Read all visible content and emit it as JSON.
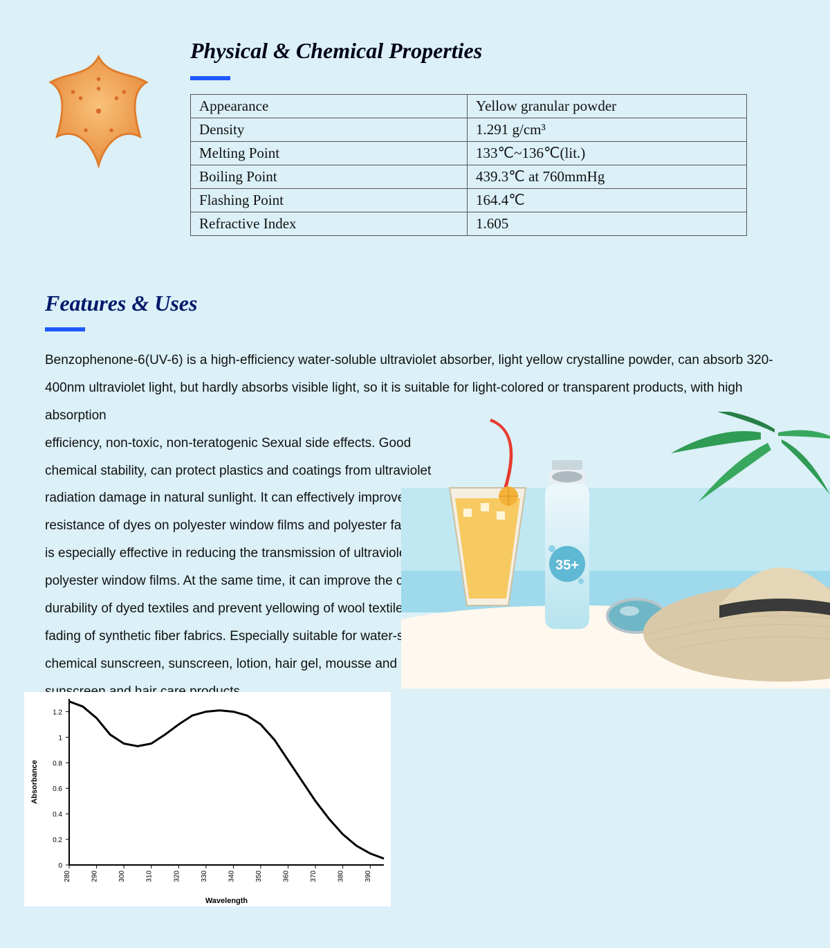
{
  "section1": {
    "title": "Physical & Chemical Properties",
    "underline_color": "#1f58ff",
    "rows": [
      {
        "k": "Appearance",
        "v": "Yellow granular powder"
      },
      {
        "k": "Density",
        "v": "1.291 g/cm³"
      },
      {
        "k": "Melting Point",
        "v": "133℃~136℃(lit.)"
      },
      {
        "k": "Boiling Point",
        "v": "439.3℃ at 760mmHg"
      },
      {
        "k": "Flashing Point",
        "v": "164.4℃"
      },
      {
        "k": "Refractive Index",
        "v": "1.605"
      }
    ]
  },
  "section2": {
    "title": "Features & Uses",
    "underline_color": "#1f58ff",
    "body_wide": "Benzophenone-6(UV-6) is a high-efficiency water-soluble ultraviolet absorber, light yellow crystalline powder, can absorb 320-400nm  ultraviolet light, but hardly absorbs visible light, so it is suitable for light-colored or transparent products, with high absorption",
    "body_narrow": "efficiency, non-toxic, non-teratogenic Sexual side effects. Good chemical stability, can protect plastics and coatings from ultraviolet radiation damage in natural sunlight. It can effectively improve the light resistance of dyes on polyester window films and polyester fabrics, and is especially effective in reducing the transmission of ultraviolet rays on polyester window films. At the same time, it can improve the color durability of dyed textiles and prevent yellowing of wool textiles and fading of synthetic fiber fabrics. Especially suitable for  water-soluble chemical sunscreen, sunscreen, lotion, hair gel, mousse and other sunscreen and hair care products."
  },
  "chart": {
    "type": "line",
    "xlabel": "Wavelength",
    "ylabel": "Absorbance",
    "label_fontsize": 11,
    "tick_fontsize": 10,
    "xlim": [
      280,
      395
    ],
    "ylim": [
      0,
      1.3
    ],
    "xticks": [
      280,
      290,
      300,
      310,
      320,
      330,
      340,
      350,
      360,
      370,
      380,
      390
    ],
    "yticks": [
      0,
      0.2,
      0.4,
      0.6,
      0.8,
      1,
      1.2
    ],
    "line_color": "#000000",
    "line_width": 3,
    "background_color": "#ffffff",
    "data": [
      {
        "x": 280,
        "y": 1.28
      },
      {
        "x": 285,
        "y": 1.24
      },
      {
        "x": 290,
        "y": 1.15
      },
      {
        "x": 295,
        "y": 1.02
      },
      {
        "x": 300,
        "y": 0.95
      },
      {
        "x": 305,
        "y": 0.93
      },
      {
        "x": 310,
        "y": 0.95
      },
      {
        "x": 315,
        "y": 1.02
      },
      {
        "x": 320,
        "y": 1.1
      },
      {
        "x": 325,
        "y": 1.17
      },
      {
        "x": 330,
        "y": 1.2
      },
      {
        "x": 335,
        "y": 1.21
      },
      {
        "x": 340,
        "y": 1.2
      },
      {
        "x": 345,
        "y": 1.17
      },
      {
        "x": 350,
        "y": 1.1
      },
      {
        "x": 355,
        "y": 0.98
      },
      {
        "x": 360,
        "y": 0.82
      },
      {
        "x": 365,
        "y": 0.66
      },
      {
        "x": 370,
        "y": 0.5
      },
      {
        "x": 375,
        "y": 0.36
      },
      {
        "x": 380,
        "y": 0.24
      },
      {
        "x": 385,
        "y": 0.15
      },
      {
        "x": 390,
        "y": 0.09
      },
      {
        "x": 395,
        "y": 0.05
      }
    ]
  },
  "illustration": {
    "starfish_color": "#f2a24c",
    "starfish_outline": "#e07b2a",
    "bottle_label": "35+",
    "bottle_body_color": "#cdeaf4",
    "bottle_cap_color": "#c9d6dc",
    "straw_color": "#e63b2e",
    "drink_color": "#f7c24a",
    "palm_color": "#2f9b55",
    "hat_color": "#d9c9a8",
    "hat_band_color": "#3a3a3a",
    "sunglasses_frame": "#b8c4c8",
    "sunglasses_lens": "#6fb7c7",
    "sky_color": "#bfe8f2",
    "sand_color": "#fff8ee"
  }
}
